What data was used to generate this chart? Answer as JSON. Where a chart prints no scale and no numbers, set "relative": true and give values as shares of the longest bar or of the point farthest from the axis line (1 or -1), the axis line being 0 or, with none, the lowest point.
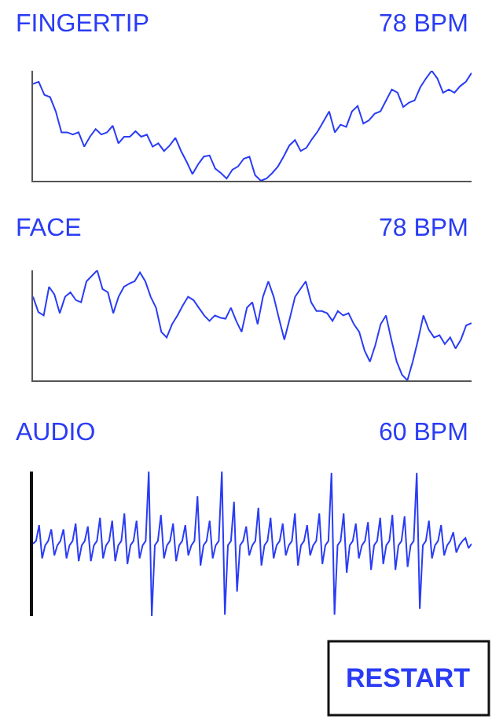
{
  "chart_data": [
    {
      "type": "line",
      "title": "FINGERTIP",
      "annotations": [
        "78 BPM"
      ],
      "relative": true,
      "color": "#2a3cf5",
      "categories": [
        null,
        null,
        null,
        null,
        null,
        null,
        null,
        null,
        null,
        null,
        null,
        null,
        null,
        null,
        null,
        null,
        null,
        null,
        null,
        null,
        null,
        null,
        null,
        null,
        null,
        null,
        null,
        null,
        null,
        null,
        null,
        null,
        null,
        null,
        null,
        null,
        null,
        null,
        null,
        null,
        null,
        null,
        null,
        null,
        null,
        null,
        null,
        null,
        null,
        null,
        null,
        null,
        null,
        null,
        null,
        null,
        null,
        null,
        null,
        null,
        null,
        null,
        null,
        null,
        null,
        null,
        null,
        null,
        null,
        null,
        null,
        null,
        null,
        null,
        null,
        null,
        null,
        null
      ],
      "values": [
        0.88,
        0.9,
        0.78,
        0.76,
        0.63,
        0.44,
        0.44,
        0.42,
        0.44,
        0.31,
        0.4,
        0.47,
        0.42,
        0.44,
        0.5,
        0.34,
        0.4,
        0.4,
        0.45,
        0.4,
        0.42,
        0.31,
        0.34,
        0.27,
        0.32,
        0.39,
        0.27,
        0.17,
        0.06,
        0.15,
        0.22,
        0.23,
        0.11,
        0.07,
        0.02,
        0.1,
        0.13,
        0.2,
        0.22,
        0.05,
        0,
        0.02,
        0.07,
        0.13,
        0.22,
        0.32,
        0.37,
        0.27,
        0.3,
        0.38,
        0.45,
        0.54,
        0.63,
        0.44,
        0.51,
        0.49,
        0.63,
        0.68,
        0.52,
        0.55,
        0.61,
        0.63,
        0.73,
        0.83,
        0.8,
        0.67,
        0.71,
        0.73,
        0.85,
        0.93,
        1,
        0.93,
        0.8,
        0.83,
        0.8,
        0.86,
        0.9,
        0.98
      ]
    },
    {
      "type": "line",
      "title": "FACE",
      "annotations": [
        "78 BPM"
      ],
      "relative": true,
      "color": "#2a3cf5",
      "categories": [
        null,
        null,
        null,
        null,
        null,
        null,
        null,
        null,
        null,
        null,
        null,
        null,
        null,
        null,
        null,
        null,
        null,
        null,
        null,
        null,
        null,
        null,
        null,
        null,
        null,
        null,
        null,
        null,
        null,
        null,
        null,
        null,
        null,
        null,
        null,
        null,
        null,
        null,
        null,
        null,
        null,
        null,
        null,
        null,
        null,
        null,
        null,
        null,
        null,
        null,
        null,
        null,
        null,
        null,
        null,
        null,
        null,
        null,
        null,
        null,
        null,
        null,
        null,
        null,
        null,
        null,
        null,
        null,
        null,
        null,
        null,
        null,
        null,
        null,
        null,
        null,
        null,
        null,
        null,
        null,
        null,
        null,
        null
      ],
      "values": [
        0.76,
        0.62,
        0.59,
        0.85,
        0.78,
        0.61,
        0.76,
        0.8,
        0.73,
        0.71,
        0.9,
        0.95,
        1,
        0.83,
        0.8,
        0.61,
        0.76,
        0.85,
        0.88,
        0.9,
        0.98,
        0.9,
        0.76,
        0.66,
        0.44,
        0.39,
        0.51,
        0.59,
        0.68,
        0.76,
        0.73,
        0.66,
        0.59,
        0.54,
        0.59,
        0.57,
        0.56,
        0.66,
        0.54,
        0.44,
        0.66,
        0.71,
        0.51,
        0.76,
        0.9,
        0.76,
        0.56,
        0.37,
        0.56,
        0.76,
        0.83,
        0.9,
        0.71,
        0.63,
        0.63,
        0.61,
        0.54,
        0.63,
        0.59,
        0.61,
        0.51,
        0.44,
        0.27,
        0.17,
        0.32,
        0.51,
        0.59,
        0.37,
        0.17,
        0.05,
        0,
        0.17,
        0.37,
        0.59,
        0.46,
        0.39,
        0.41,
        0.33,
        0.39,
        0.29,
        0.37,
        0.5,
        0.52
      ]
    },
    {
      "type": "line",
      "title": "AUDIO",
      "annotations": [
        "60 BPM"
      ],
      "relative": true,
      "color": "#2a3cf5",
      "categories": [
        null,
        null,
        null,
        null,
        null,
        null,
        null,
        null,
        null,
        null,
        null,
        null,
        null,
        null,
        null,
        null,
        null,
        null,
        null,
        null,
        null,
        null,
        null,
        null,
        null,
        null,
        null,
        null,
        null,
        null,
        null,
        null,
        null,
        null,
        null,
        null,
        null,
        null,
        null,
        null,
        null,
        null,
        null,
        null,
        null,
        null,
        null,
        null,
        null,
        null,
        null,
        null,
        null,
        null,
        null,
        null,
        null,
        null,
        null,
        null,
        null,
        null,
        null,
        null,
        null,
        null,
        null,
        null,
        null,
        null,
        null,
        null,
        null,
        null,
        null,
        null,
        null,
        null,
        null,
        null,
        null,
        null,
        null,
        null,
        null,
        null,
        null,
        null,
        null,
        null,
        null,
        null,
        null,
        null,
        null,
        null,
        null,
        null,
        null,
        null,
        null,
        null,
        null,
        null,
        null,
        null,
        null,
        null,
        null,
        null,
        null,
        null,
        null,
        null,
        null,
        null,
        null,
        null,
        null,
        null,
        null,
        null,
        null,
        null,
        null,
        null,
        null,
        null,
        null,
        null,
        null,
        null,
        null,
        null,
        null,
        null,
        null,
        null,
        null,
        null,
        null,
        null,
        null,
        null,
        null
      ],
      "values": [
        0.5,
        0.52,
        0.63,
        0.4,
        0.49,
        0.52,
        0.6,
        0.42,
        0.49,
        0.52,
        0.6,
        0.4,
        0.49,
        0.52,
        0.64,
        0.38,
        0.49,
        0.52,
        0.62,
        0.38,
        0.49,
        0.52,
        0.68,
        0.4,
        0.49,
        0.52,
        0.66,
        0.38,
        0.49,
        0.52,
        0.71,
        0.36,
        0.49,
        0.52,
        0.66,
        0.4,
        0.49,
        0.52,
        1,
        0,
        0.49,
        0.52,
        0.7,
        0.4,
        0.49,
        0.52,
        0.64,
        0.38,
        0.49,
        0.52,
        0.63,
        0.42,
        0.49,
        0.52,
        0.83,
        0.35,
        0.49,
        0.52,
        0.66,
        0.4,
        0.49,
        0.52,
        1,
        0.01,
        0.49,
        0.52,
        0.79,
        0.17,
        0.49,
        0.52,
        0.62,
        0.42,
        0.49,
        0.52,
        0.75,
        0.35,
        0.49,
        0.52,
        0.68,
        0.4,
        0.49,
        0.52,
        0.64,
        0.42,
        0.49,
        0.52,
        0.71,
        0.35,
        0.49,
        0.52,
        0.63,
        0.42,
        0.49,
        0.52,
        0.71,
        0.36,
        0.49,
        0.52,
        0.99,
        0.01,
        0.49,
        0.52,
        0.71,
        0.3,
        0.49,
        0.52,
        0.64,
        0.4,
        0.49,
        0.52,
        0.65,
        0.32,
        0.49,
        0.52,
        0.68,
        0.36,
        0.49,
        0.52,
        0.7,
        0.32,
        0.49,
        0.52,
        0.69,
        0.34,
        0.49,
        0.52,
        0.99,
        0.05,
        0.49,
        0.52,
        0.66,
        0.4,
        0.49,
        0.52,
        0.63,
        0.42,
        0.49,
        0.52,
        0.58,
        0.44,
        0.49,
        0.52,
        0.54,
        0.47,
        0.5
      ]
    },
    {
      "type": "other",
      "annotations": [
        "RESTART"
      ]
    }
  ]
}
